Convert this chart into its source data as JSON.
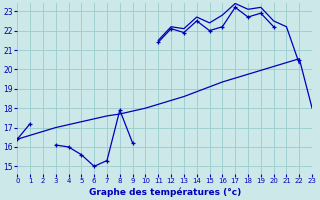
{
  "xlabel": "Graphe des températures (°c)",
  "bg_color": "#cce8e8",
  "grid_color": "#99cccc",
  "line_color": "#0000bb",
  "ylim": [
    14.6,
    23.4
  ],
  "xlim": [
    0,
    23
  ],
  "yticks": [
    15,
    16,
    17,
    18,
    19,
    20,
    21,
    22,
    23
  ],
  "xticks": [
    0,
    1,
    2,
    3,
    4,
    5,
    6,
    7,
    8,
    9,
    10,
    11,
    12,
    13,
    14,
    15,
    16,
    17,
    18,
    19,
    20,
    21,
    22,
    23
  ],
  "temp_obs": [
    16.4,
    17.2,
    null,
    16.1,
    16.0,
    15.6,
    15.0,
    15.3,
    17.9,
    16.2,
    null,
    21.4,
    22.1,
    21.9,
    22.5,
    22.0,
    22.2,
    23.2,
    22.7,
    22.9,
    22.2,
    null,
    20.5,
    null
  ],
  "temp_high": [
    null,
    null,
    null,
    null,
    null,
    null,
    null,
    null,
    null,
    null,
    null,
    21.5,
    22.2,
    22.1,
    22.7,
    22.4,
    22.8,
    23.4,
    23.1,
    23.2,
    22.5,
    22.2,
    20.3,
    null
  ],
  "temp_ref": [
    16.4,
    16.6,
    16.8,
    17.0,
    17.15,
    17.3,
    17.45,
    17.6,
    17.7,
    17.85,
    18.0,
    18.2,
    18.4,
    18.6,
    18.85,
    19.1,
    19.35,
    19.55,
    19.75,
    19.95,
    20.15,
    20.35,
    20.55,
    18.0
  ]
}
